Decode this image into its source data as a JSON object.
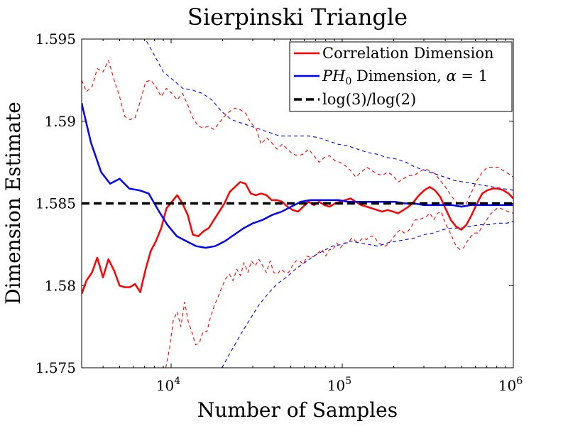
{
  "chart_data": {
    "type": "line",
    "title": "Sierpinski Triangle",
    "xlabel": "Number of Samples",
    "ylabel": "Dimension Estimate",
    "xscale": "log",
    "xlim": [
      3000,
      1000000
    ],
    "ylim": [
      1.575,
      1.595
    ],
    "xticks": [
      {
        "value": 10000,
        "base": "10",
        "exp": "4"
      },
      {
        "value": 100000,
        "base": "10",
        "exp": "5"
      },
      {
        "value": 1000000,
        "base": "10",
        "exp": "6"
      }
    ],
    "yticks": [
      {
        "value": 1.575,
        "label": "1.575"
      },
      {
        "value": 1.58,
        "label": "1.58"
      },
      {
        "value": 1.585,
        "label": "1.585"
      },
      {
        "value": 1.59,
        "label": "1.59"
      },
      {
        "value": 1.595,
        "label": "1.595"
      }
    ],
    "legend": {
      "position": "top-right",
      "entries": [
        {
          "label": "Correlation Dimension"
        },
        {
          "label_main": "PH",
          "label_sub": "0",
          "label_rest": " Dimension, ",
          "label_alpha": "α",
          "label_eq": " = 1"
        },
        {
          "label": "log(3)/log(2)"
        }
      ]
    },
    "colors": {
      "correlation": "#ff0000",
      "ph0": "#0000ff",
      "reference": "#000000"
    },
    "series": [
      {
        "name": "Correlation Dimension",
        "color": "#ff0000",
        "style": "solid",
        "x": [
          3000,
          3200,
          3450,
          3700,
          4000,
          4300,
          4650,
          5000,
          5350,
          5750,
          6150,
          6600,
          7100,
          7600,
          8150,
          8750,
          9400,
          10100,
          10850,
          11650,
          12500,
          13400,
          14400,
          15450,
          16600,
          17800,
          19100,
          20500,
          22000,
          23600,
          25300,
          27200,
          29200,
          31300,
          33600,
          36100,
          38700,
          41600,
          44600,
          47900,
          51400,
          55200,
          59200,
          63600,
          68300,
          73300,
          78700,
          84400,
          90600,
          97300,
          104000,
          112000,
          120000,
          129000,
          139000,
          149000,
          160000,
          171000,
          184000,
          198000,
          212000,
          228000,
          244000,
          262000,
          281000,
          302000,
          324000,
          348000,
          374000,
          401000,
          431000,
          462000,
          496000,
          532000,
          571000,
          613000,
          658000,
          706000,
          758000,
          814000,
          873000,
          937000,
          1000000
        ],
        "y": [
          1.5795,
          1.5803,
          1.5808,
          1.5817,
          1.5805,
          1.5816,
          1.5809,
          1.58,
          1.5799,
          1.5799,
          1.5801,
          1.5796,
          1.581,
          1.5821,
          1.5827,
          1.5835,
          1.5847,
          1.5851,
          1.5855,
          1.585,
          1.5843,
          1.5831,
          1.583,
          1.5833,
          1.5835,
          1.584,
          1.5845,
          1.585,
          1.5857,
          1.586,
          1.5863,
          1.5862,
          1.5856,
          1.5855,
          1.5856,
          1.5855,
          1.5852,
          1.5852,
          1.5851,
          1.5848,
          1.5846,
          1.5845,
          1.5848,
          1.5851,
          1.5849,
          1.5851,
          1.5849,
          1.5848,
          1.585,
          1.5851,
          1.5852,
          1.5853,
          1.5851,
          1.5849,
          1.5848,
          1.5847,
          1.5846,
          1.5845,
          1.5846,
          1.5845,
          1.5844,
          1.5846,
          1.5848,
          1.5851,
          1.5855,
          1.5858,
          1.586,
          1.5858,
          1.5854,
          1.5847,
          1.584,
          1.5836,
          1.5834,
          1.5837,
          1.5843,
          1.585,
          1.5856,
          1.5858,
          1.5859,
          1.5859,
          1.5858,
          1.5856,
          1.5853
        ]
      },
      {
        "name": "Correlation Dimension upper bound",
        "color": "#ff0000",
        "style": "dashed",
        "x": [
          3000,
          3200,
          3450,
          3700,
          4000,
          4300,
          4650,
          5000,
          5350,
          5750,
          6150,
          6600,
          7100,
          7600,
          8150,
          8750,
          9400,
          10100,
          10850,
          11650,
          12500,
          13400,
          14400,
          15450,
          16600,
          17800,
          19100,
          20500,
          22000,
          23600,
          25300,
          27200,
          29200,
          31300,
          33600,
          36100,
          38700,
          41600,
          44600,
          47900,
          51400,
          55200,
          59200,
          63600,
          68300,
          73300,
          78700,
          84400,
          90600,
          97300,
          104000,
          112000,
          120000,
          129000,
          139000,
          149000,
          160000,
          171000,
          184000,
          198000,
          212000,
          228000,
          244000,
          262000,
          281000,
          302000,
          324000,
          348000,
          374000,
          401000,
          431000,
          462000,
          496000,
          532000,
          571000,
          613000,
          658000,
          706000,
          758000,
          814000,
          873000,
          937000,
          1000000
        ],
        "y": [
          1.5925,
          1.5918,
          1.5921,
          1.5932,
          1.593,
          1.5937,
          1.5925,
          1.5915,
          1.5903,
          1.5901,
          1.5902,
          1.5912,
          1.5924,
          1.5925,
          1.5921,
          1.5915,
          1.592,
          1.5917,
          1.5913,
          1.5917,
          1.591,
          1.5902,
          1.5897,
          1.5896,
          1.5897,
          1.5895,
          1.5899,
          1.5903,
          1.5906,
          1.5908,
          1.5907,
          1.5905,
          1.5899,
          1.5896,
          1.5886,
          1.589,
          1.5887,
          1.5883,
          1.5886,
          1.5883,
          1.588,
          1.5879,
          1.588,
          1.5883,
          1.5879,
          1.5875,
          1.5878,
          1.5879,
          1.5876,
          1.5875,
          1.5873,
          1.587,
          1.5866,
          1.5869,
          1.5872,
          1.587,
          1.5868,
          1.5867,
          1.5869,
          1.5867,
          1.5863,
          1.5865,
          1.5867,
          1.5867,
          1.5869,
          1.5871,
          1.587,
          1.5868,
          1.5864,
          1.586,
          1.5855,
          1.5851,
          1.5848,
          1.585,
          1.5857,
          1.5864,
          1.5869,
          1.5872,
          1.5872,
          1.5872,
          1.587,
          1.5868,
          1.5866
        ]
      },
      {
        "name": "Correlation Dimension lower bound",
        "color": "#ff0000",
        "style": "dashed",
        "x": [
          9300,
          9800,
          10300,
          10850,
          11400,
          12000,
          12600,
          13200,
          13900,
          14600,
          15400,
          16200,
          17000,
          17900,
          18800,
          19800,
          20800,
          21900,
          23000,
          24200,
          25400,
          26700,
          28100,
          29500,
          31000,
          32600,
          34300,
          36000,
          37900,
          39800,
          41800,
          44000,
          46200,
          48600,
          51100,
          53700,
          56400,
          59300,
          62300,
          65500,
          68900,
          72400,
          76100,
          80000,
          84100,
          88400,
          92900,
          97600,
          103000,
          108000,
          114000,
          120000,
          126000,
          132000,
          139000,
          146000,
          154000,
          162000,
          170000,
          179000,
          188000,
          198000,
          208000,
          219000,
          230000,
          242000,
          254000,
          267000,
          281000,
          295000,
          310000,
          326000,
          343000,
          361000,
          379000,
          399000,
          419000,
          441000,
          463000,
          487000,
          512000,
          538000,
          566000,
          595000,
          625000,
          657000,
          691000,
          726000,
          764000,
          803000,
          844000,
          887000,
          933000,
          1000000
        ],
        "y": [
          1.575,
          1.5762,
          1.5779,
          1.5784,
          1.5775,
          1.579,
          1.5778,
          1.5772,
          1.5764,
          1.5765,
          1.5772,
          1.5772,
          1.5781,
          1.5788,
          1.5793,
          1.5799,
          1.5804,
          1.5807,
          1.5803,
          1.581,
          1.5806,
          1.5814,
          1.5808,
          1.5815,
          1.5812,
          1.5816,
          1.5812,
          1.5808,
          1.5815,
          1.5808,
          1.5807,
          1.581,
          1.5808,
          1.5808,
          1.5812,
          1.5815,
          1.5815,
          1.5813,
          1.5818,
          1.5817,
          1.5818,
          1.582,
          1.5822,
          1.5818,
          1.5822,
          1.5822,
          1.5826,
          1.5823,
          1.5826,
          1.5826,
          1.5829,
          1.5827,
          1.5827,
          1.5829,
          1.5828,
          1.583,
          1.583,
          1.5826,
          1.5825,
          1.5824,
          1.5826,
          1.5829,
          1.5832,
          1.5834,
          1.5832,
          1.5833,
          1.5836,
          1.584,
          1.584,
          1.5841,
          1.5842,
          1.5844,
          1.584,
          1.5844,
          1.5845,
          1.5838,
          1.5834,
          1.5829,
          1.5824,
          1.5822,
          1.5823,
          1.5827,
          1.583,
          1.5832,
          1.5832,
          1.5836,
          1.5839,
          1.5843,
          1.5845,
          1.5847,
          1.5847,
          1.5846,
          1.5845,
          1.5844
        ]
      },
      {
        "name": "PH0 Dimension, alpha = 1",
        "color": "#0000ff",
        "style": "solid",
        "x": [
          3000,
          3400,
          3900,
          4400,
          5000,
          5700,
          6500,
          7400,
          8400,
          9500,
          10800,
          12300,
          14000,
          15900,
          18100,
          20600,
          23400,
          26600,
          30200,
          34300,
          39000,
          44300,
          50300,
          57100,
          64900,
          73700,
          83700,
          95000,
          108000,
          123000,
          139000,
          158000,
          180000,
          204000,
          232000,
          263000,
          299000,
          340000,
          386000,
          438000,
          498000,
          565000,
          642000,
          729000,
          828000,
          940000,
          1000000
        ],
        "y": [
          1.5911,
          1.5887,
          1.5869,
          1.5862,
          1.5865,
          1.5859,
          1.5858,
          1.5856,
          1.5846,
          1.5837,
          1.583,
          1.5827,
          1.5824,
          1.5823,
          1.5824,
          1.5827,
          1.5831,
          1.5835,
          1.5838,
          1.584,
          1.5843,
          1.5845,
          1.5848,
          1.5851,
          1.5852,
          1.5852,
          1.5852,
          1.5852,
          1.5851,
          1.5851,
          1.5851,
          1.5851,
          1.5851,
          1.5851,
          1.585,
          1.585,
          1.5849,
          1.5849,
          1.5849,
          1.5849,
          1.5848,
          1.5849,
          1.5849,
          1.5849,
          1.5849,
          1.5849,
          1.5849
        ]
      },
      {
        "name": "PH0 Dimension upper bound",
        "color": "#0000ff",
        "style": "dashed",
        "x": [
          6900,
          7900,
          9000,
          10300,
          11700,
          13300,
          15200,
          17300,
          19700,
          22500,
          25600,
          29200,
          33300,
          37900,
          43200,
          49200,
          56100,
          63900,
          72800,
          82900,
          94500,
          108000,
          123000,
          140000,
          159000,
          181000,
          207000,
          236000,
          268000,
          306000,
          348000,
          397000,
          452000,
          515000,
          587000,
          669000,
          762000,
          868000,
          1000000
        ],
        "y": [
          1.5952,
          1.5941,
          1.593,
          1.5925,
          1.592,
          1.5919,
          1.5917,
          1.5913,
          1.5906,
          1.5901,
          1.5899,
          1.5897,
          1.5895,
          1.5893,
          1.5891,
          1.5891,
          1.5891,
          1.5891,
          1.589,
          1.5888,
          1.5886,
          1.5885,
          1.5883,
          1.5881,
          1.588,
          1.5878,
          1.5877,
          1.5875,
          1.5872,
          1.587,
          1.5868,
          1.5866,
          1.5864,
          1.5863,
          1.5862,
          1.5861,
          1.586,
          1.5859,
          1.5858
        ]
      },
      {
        "name": "PH0 Dimension lower bound",
        "color": "#0000ff",
        "style": "dashed",
        "x": [
          19800,
          22400,
          25400,
          28700,
          32500,
          36800,
          41600,
          47100,
          53300,
          60300,
          68200,
          77200,
          87400,
          98900,
          112000,
          127000,
          143000,
          162000,
          184000,
          208000,
          235000,
          266000,
          301000,
          341000,
          386000,
          437000,
          494000,
          559000,
          633000,
          716000,
          810000,
          917000,
          1000000
        ],
        "y": [
          1.575,
          1.576,
          1.577,
          1.5779,
          1.5788,
          1.5795,
          1.5801,
          1.5805,
          1.581,
          1.5814,
          1.5818,
          1.5821,
          1.5824,
          1.5825,
          1.5827,
          1.5826,
          1.5825,
          1.5824,
          1.5826,
          1.5827,
          1.5828,
          1.5829,
          1.5831,
          1.5832,
          1.5834,
          1.5835,
          1.5835,
          1.5836,
          1.5837,
          1.5837,
          1.5838,
          1.5838,
          1.5839
        ]
      },
      {
        "name": "log(3)/log(2)",
        "color": "#000000",
        "style": "bold-dashed",
        "x": [
          3000,
          1000000
        ],
        "y": [
          1.585,
          1.585
        ]
      }
    ]
  }
}
